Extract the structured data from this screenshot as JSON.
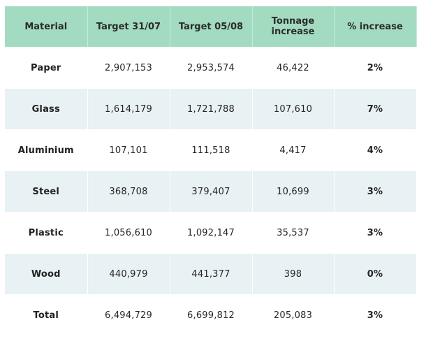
{
  "table": {
    "headers": [
      "Material",
      "Target 31/07",
      "Target 05/08",
      "Tonnage increase",
      "% increase"
    ],
    "rows": [
      [
        "Paper",
        "2,907,153",
        "2,953,574",
        "46,422",
        "2%"
      ],
      [
        "Glass",
        "1,614,179",
        "1,721,788",
        "107,610",
        "7%"
      ],
      [
        "Aluminium",
        "107,101",
        "111,518",
        "4,417",
        "4%"
      ],
      [
        "Steel",
        "368,708",
        "379,407",
        "10,699",
        "3%"
      ],
      [
        "Plastic",
        "1,056,610",
        "1,092,147",
        "35,537",
        "3%"
      ],
      [
        "Wood",
        "440,979",
        "441,377",
        "398",
        "0%"
      ],
      [
        "Total",
        "6,494,729",
        "6,699,812",
        "205,083",
        "3%"
      ]
    ]
  },
  "colors": {
    "header_bg": "#a3dbc0",
    "stripe_bg": "#e8f1f3",
    "row_bg": "#ffffff"
  }
}
